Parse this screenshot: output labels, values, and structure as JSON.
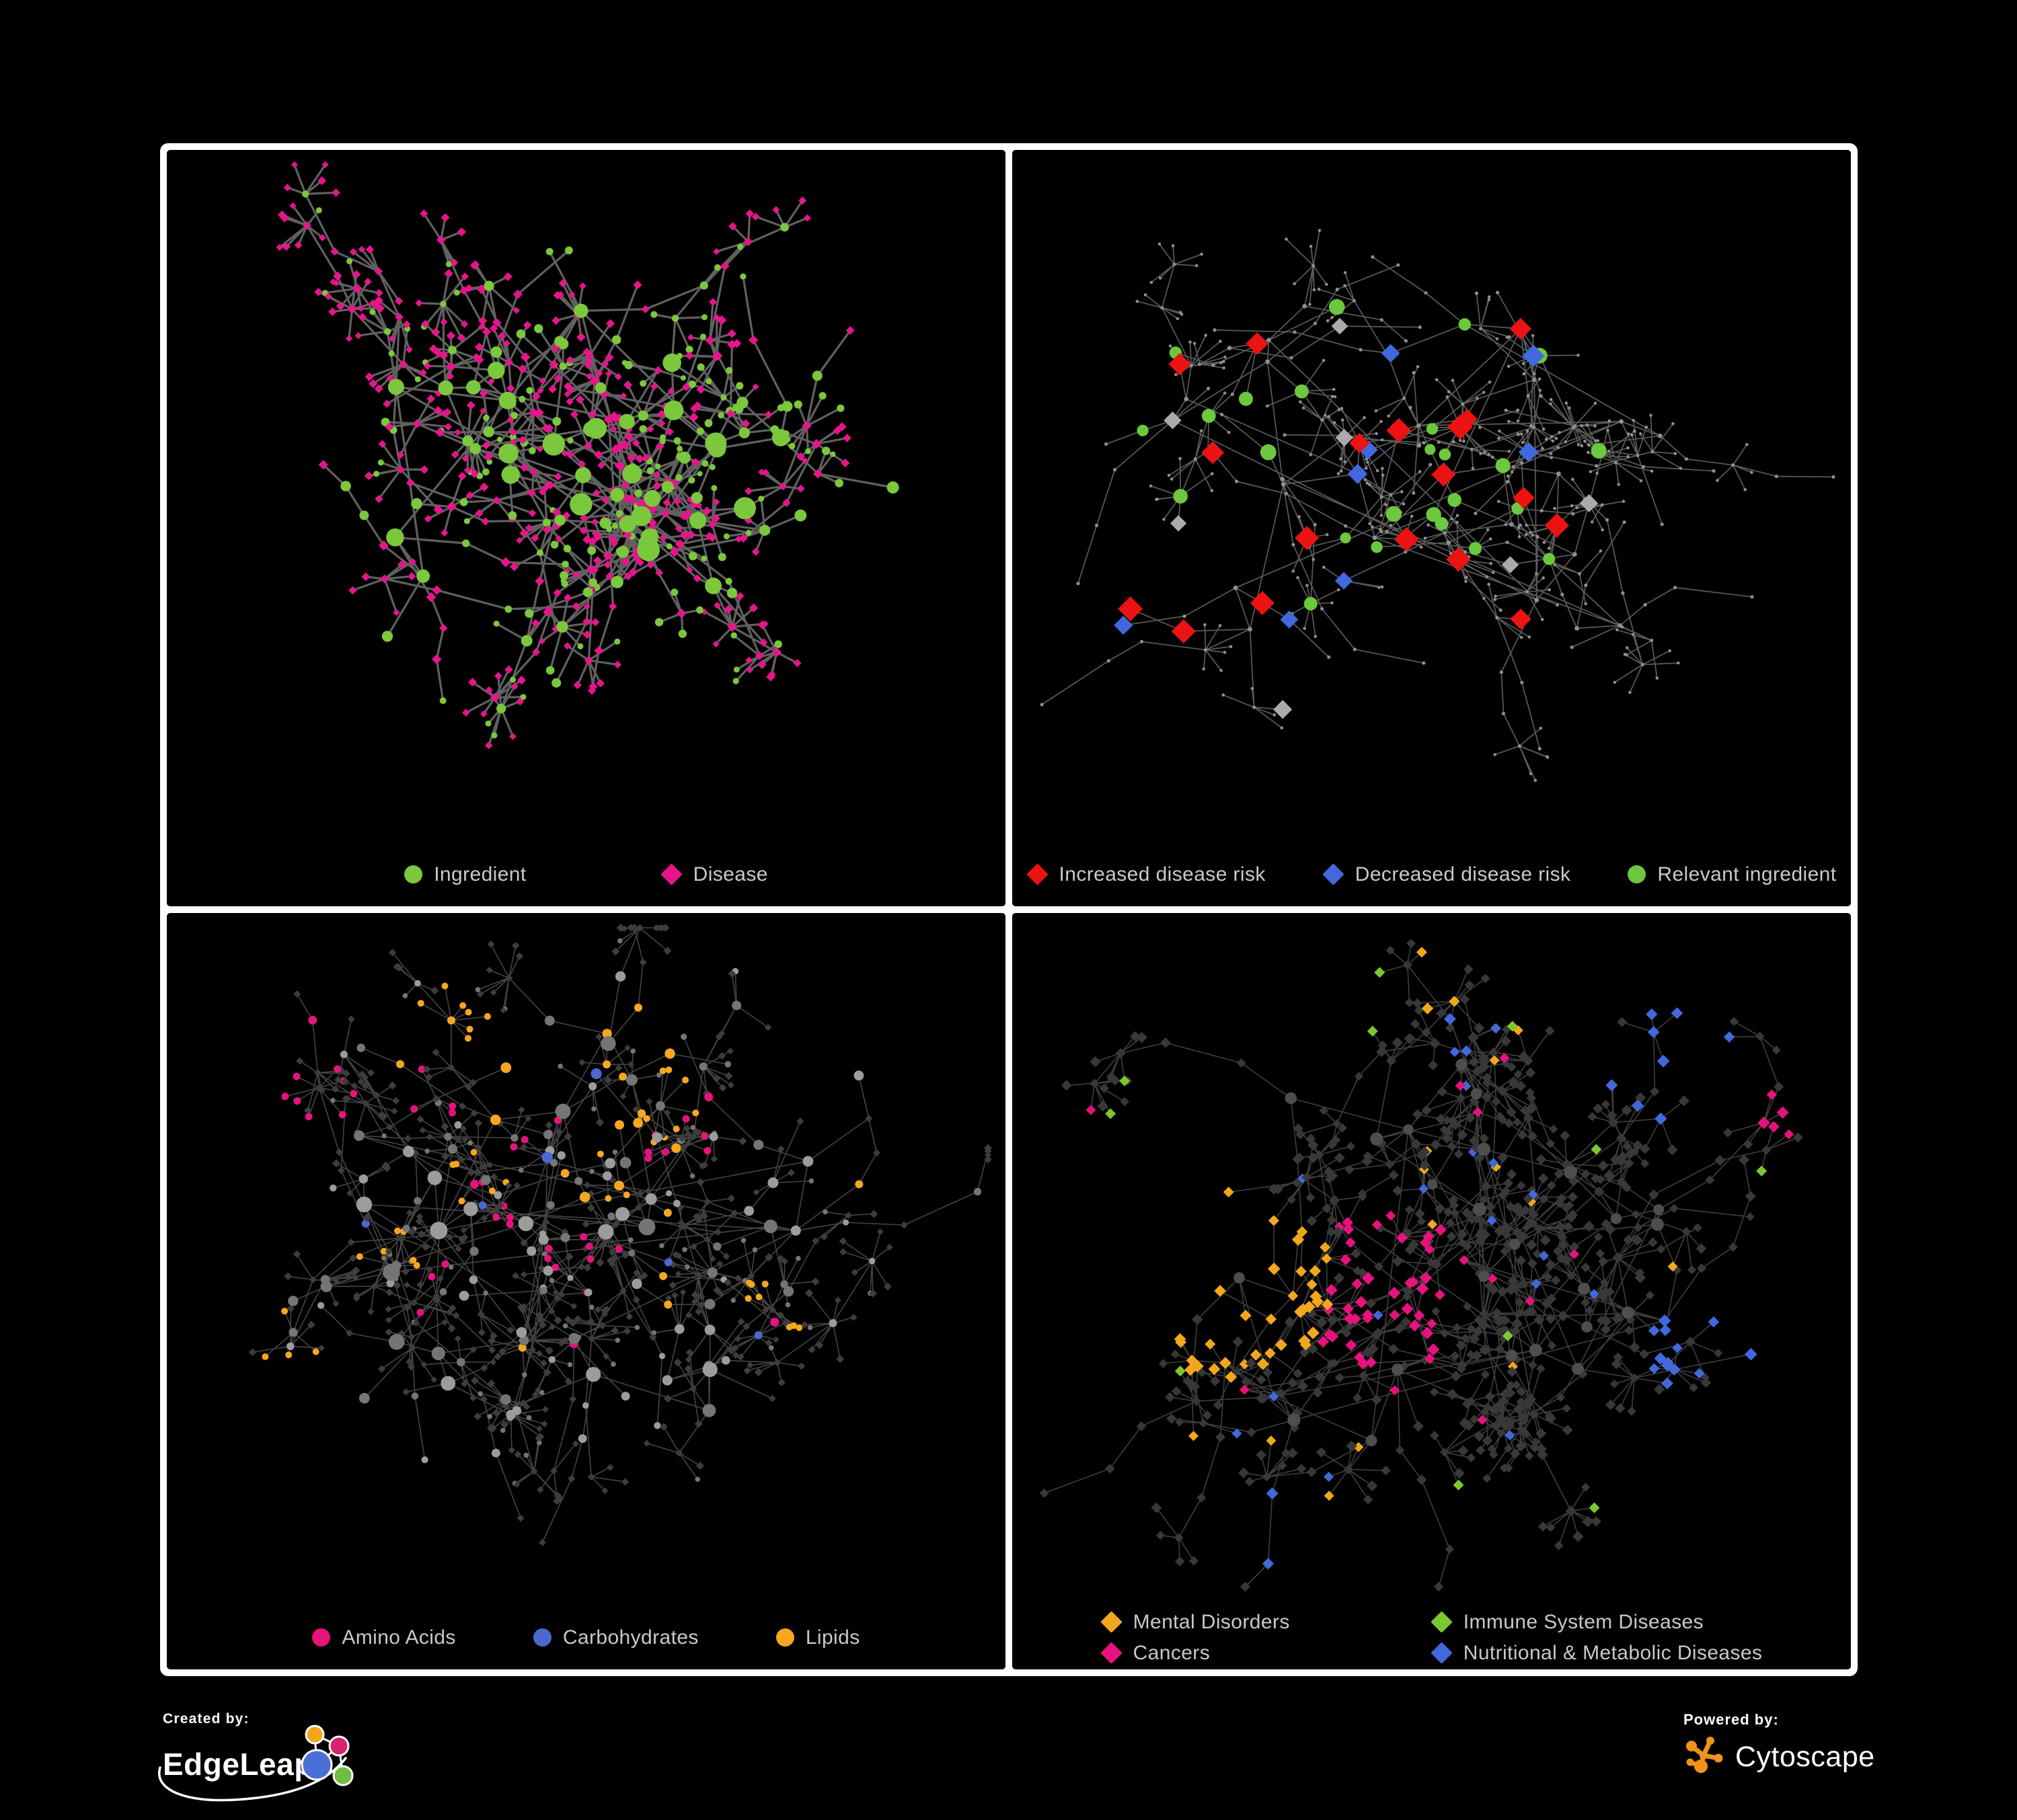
{
  "page": {
    "background": "#000000",
    "frame_color": "#FFFFFF",
    "legend_text_color": "#C9C9C9"
  },
  "panels": [
    {
      "name": "ingredient-disease",
      "legend_layout": "row",
      "legend": [
        {
          "label": "Ingredient",
          "shape": "circle",
          "color": "#7CC83C"
        },
        {
          "label": "Disease",
          "shape": "diamond",
          "color": "#E6158C"
        }
      ],
      "net": {
        "seed": 101,
        "style": "p1",
        "hubs": 34,
        "spread": 0.8,
        "burst": 0.34,
        "edge_color": "#6A6A6A",
        "edge_width": 3.2,
        "edge_opacity": 0.9,
        "colors": {
          "green": "#7CC83C",
          "pink": "#E6158C"
        }
      }
    },
    {
      "name": "disease-risk",
      "legend_layout": "row",
      "legend": [
        {
          "label": "Increased disease risk",
          "shape": "diamond",
          "color": "#EC1313"
        },
        {
          "label": "Decreased disease risk",
          "shape": "diamond",
          "color": "#4168DD"
        },
        {
          "label": "Relevant ingredient",
          "shape": "circle",
          "color": "#6CC83C"
        }
      ],
      "net": {
        "seed": 202,
        "style": "p2",
        "hubs": 30,
        "spread": 0.98,
        "burst": 0.3,
        "edge_color": "#7A7A7A",
        "edge_width": 1.7,
        "edge_opacity": 0.75,
        "colors": {
          "red": "#EC1313",
          "blue": "#4168DD",
          "silver": "#ABABAB",
          "green": "#6CC83C",
          "base": "#8F8F8F"
        },
        "highlights": {
          "red": 22,
          "blue": 9,
          "silver": 9,
          "green": 26
        }
      }
    },
    {
      "name": "nutrient-classes",
      "legend_layout": "row",
      "legend": [
        {
          "label": "Amino Acids",
          "shape": "circle",
          "color": "#E6127D"
        },
        {
          "label": "Carbohydrates",
          "shape": "circle",
          "color": "#4A68D0"
        },
        {
          "label": "Lipids",
          "shape": "circle",
          "color": "#F6A71F"
        }
      ],
      "net": {
        "seed": 303,
        "style": "p3",
        "hubs": 32,
        "spread": 0.98,
        "burst": 0.42,
        "edge_color": "#A3A3A3",
        "edge_width": 1.6,
        "edge_opacity": 0.42,
        "colors": {
          "pink": "#E6127D",
          "blue": "#4A68D0",
          "orange": "#F6A71F",
          "gray": "#9C9C9C",
          "gray2": "#757575",
          "dark": "#3D3D3D"
        }
      }
    },
    {
      "name": "disease-classes",
      "legend_layout": "grid2",
      "legend": [
        {
          "label": "Mental Disorders",
          "shape": "diamond",
          "color": "#F3A71E"
        },
        {
          "label": "Immune System Diseases",
          "shape": "diamond",
          "color": "#7CC82F"
        },
        {
          "label": "Cancers",
          "shape": "diamond",
          "color": "#E6127D"
        },
        {
          "label": "Nutritional & Metabolic Diseases",
          "shape": "diamond",
          "color": "#4169DB"
        }
      ],
      "net": {
        "seed": 404,
        "style": "p4",
        "hubs": 34,
        "spread": 0.98,
        "burst": 0.42,
        "edge_color": "#A3A3A3",
        "edge_width": 1.6,
        "edge_opacity": 0.38,
        "colors": {
          "orange": "#F3A71E",
          "green": "#7CC82F",
          "pink": "#E6127D",
          "blue": "#4169DB",
          "dark": "#383838",
          "darkc": "#4E4E4E"
        }
      }
    }
  ],
  "footer": {
    "created_by": "Created by:",
    "edgeleap": "EdgeLeap",
    "powered_by": "Powered by:",
    "cytoscape": "Cytoscape",
    "edgeleap_logo_colors": {
      "orange": "#F2A71B",
      "pink": "#D6246E",
      "blue": "#4A6FD8",
      "green": "#6DBE45"
    },
    "cytoscape_logo_color": "#F0921E"
  }
}
